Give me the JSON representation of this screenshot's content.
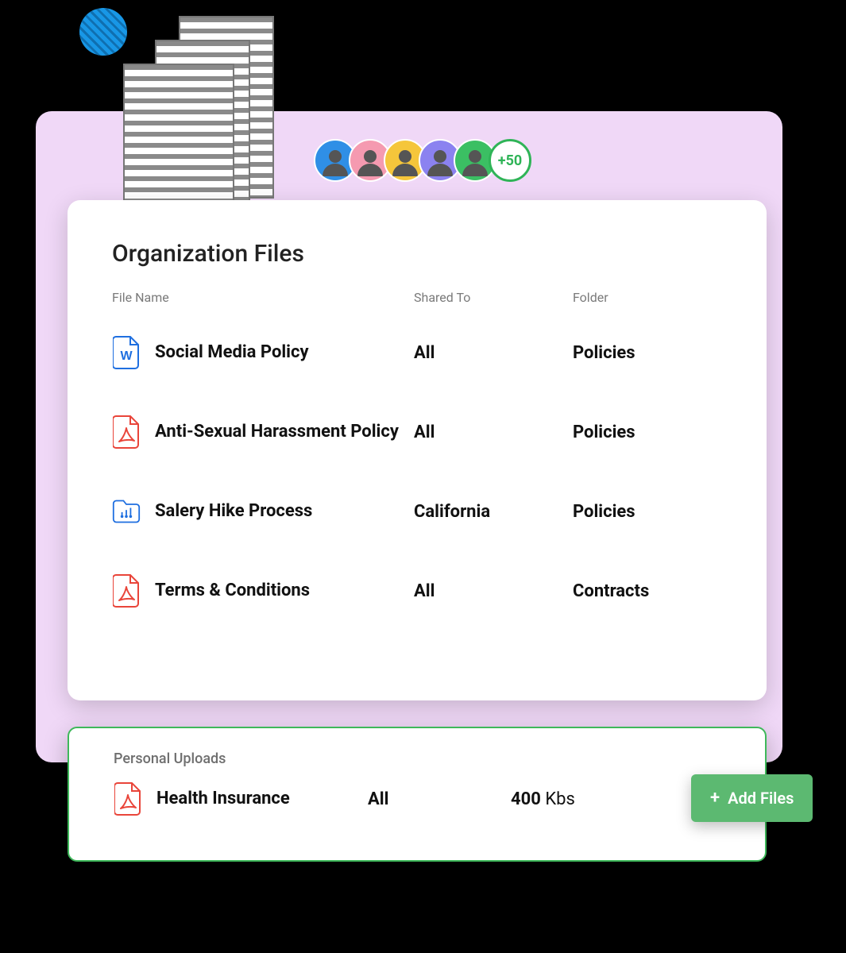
{
  "decor": {
    "avatar_colors": [
      "#2f8fe6",
      "#f59ab0",
      "#f5c63b",
      "#8b82f0",
      "#3bbf63"
    ],
    "more_label": "+50"
  },
  "org_card": {
    "title": "Organization Files",
    "columns": {
      "file": "File Name",
      "shared": "Shared To",
      "folder": "Folder"
    },
    "rows": [
      {
        "icon": "word",
        "name": "Social Media Policy",
        "shared": "All",
        "folder": "Policies"
      },
      {
        "icon": "pdf",
        "name": "Anti-Sexual Harassment Policy",
        "shared": "All",
        "folder": "Policies"
      },
      {
        "icon": "folder",
        "name": "Salery Hike Process",
        "shared": "California",
        "folder": "Policies"
      },
      {
        "icon": "pdf",
        "name": "Terms & Conditions",
        "shared": "All",
        "folder": "Contracts"
      }
    ]
  },
  "personal_card": {
    "title": "Personal Uploads",
    "row": {
      "icon": "pdf",
      "name": "Health Insurance",
      "shared": "All",
      "size_value": "400",
      "size_unit": " Kbs"
    }
  },
  "add_button": {
    "label": "Add Files"
  },
  "colors": {
    "stage_bg": "#f0d8f7",
    "accent_green": "#3eb85a",
    "btn_green": "#5cb971",
    "word_blue": "#1f6fe0",
    "pdf_red": "#e9453a",
    "folder_blue": "#1f6fe0"
  }
}
